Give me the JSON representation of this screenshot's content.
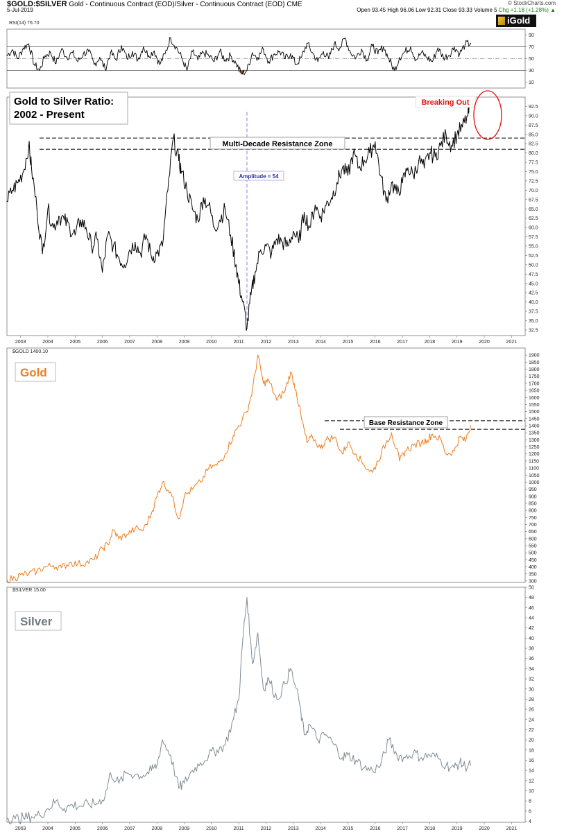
{
  "header": {
    "symbol": "$GOLD:$SILVER",
    "description": "Gold - Continuous Contract (EOD)/Silver - Continuous Contract (EOD) CME",
    "date": "5-Jul-2019",
    "credit": "© StockCharts.com",
    "ohlc": "Open 93.45 High 96.06 Low 92.31 Close 93.33 Volume 5",
    "change": "Chg +1.18 (+1.28%) ▲"
  },
  "logo": {
    "text": "iGold"
  },
  "chart_data": [
    {
      "type": "line",
      "panel": "rsi",
      "label": "RSI(14) 76.70",
      "ylim": [
        0,
        100
      ],
      "yticks": [
        10,
        30,
        50,
        70,
        90
      ],
      "levels": [
        30,
        50,
        70
      ],
      "color": "#000000",
      "fill_below_30": "#a0604a",
      "x": [
        2002.5,
        2002.7,
        2002.9,
        2003.1,
        2003.3,
        2003.5,
        2003.7,
        2003.9,
        2004.1,
        2004.3,
        2004.5,
        2004.7,
        2004.9,
        2005.1,
        2005.3,
        2005.5,
        2005.7,
        2005.9,
        2006.1,
        2006.3,
        2006.5,
        2006.7,
        2006.9,
        2007.1,
        2007.3,
        2007.5,
        2007.7,
        2007.9,
        2008.1,
        2008.3,
        2008.5,
        2008.7,
        2008.9,
        2009.1,
        2009.3,
        2009.5,
        2009.7,
        2009.9,
        2010.1,
        2010.3,
        2010.5,
        2010.7,
        2010.9,
        2011.1,
        2011.3,
        2011.5,
        2011.7,
        2011.9,
        2012.1,
        2012.3,
        2012.5,
        2012.7,
        2012.9,
        2013.1,
        2013.3,
        2013.5,
        2013.7,
        2013.9,
        2014.1,
        2014.3,
        2014.5,
        2014.7,
        2014.9,
        2015.1,
        2015.3,
        2015.5,
        2015.7,
        2015.9,
        2016.1,
        2016.3,
        2016.5,
        2016.7,
        2016.9,
        2017.1,
        2017.3,
        2017.5,
        2017.7,
        2017.9,
        2018.1,
        2018.3,
        2018.5,
        2018.7,
        2018.9,
        2019.1,
        2019.3,
        2019.5
      ],
      "y": [
        55,
        65,
        50,
        68,
        75,
        40,
        30,
        55,
        60,
        42,
        66,
        52,
        60,
        45,
        58,
        62,
        40,
        52,
        32,
        60,
        48,
        72,
        50,
        62,
        48,
        70,
        55,
        63,
        40,
        58,
        85,
        70,
        52,
        30,
        62,
        48,
        60,
        55,
        45,
        62,
        48,
        55,
        42,
        24,
        30,
        60,
        52,
        66,
        45,
        58,
        62,
        50,
        58,
        40,
        52,
        76,
        60,
        45,
        62,
        50,
        75,
        68,
        85,
        60,
        52,
        66,
        48,
        72,
        58,
        70,
        50,
        30,
        52,
        62,
        70,
        48,
        60,
        52,
        45,
        68,
        52,
        55,
        70,
        58,
        74,
        76
      ]
    },
    {
      "type": "line",
      "panel": "ratio",
      "title": "Gold to Silver Ratio:\n2002 - Present",
      "ylim": [
        31,
        95
      ],
      "yticks": [
        32.5,
        35.0,
        37.5,
        40.0,
        42.5,
        45.0,
        47.5,
        50.0,
        52.5,
        55.0,
        57.5,
        60.0,
        62.5,
        65.0,
        67.5,
        70.0,
        72.5,
        75.0,
        77.5,
        80.0,
        82.5,
        85.0,
        87.5,
        90.0,
        92.5
      ],
      "xticks": [
        2003,
        2004,
        2005,
        2006,
        2007,
        2008,
        2009,
        2010,
        2011,
        2012,
        2013,
        2014,
        2015,
        2016,
        2017,
        2018,
        2019,
        2020,
        2021
      ],
      "color": "#000000",
      "annotations": {
        "resistance": "Multi-Decade Resistance Zone",
        "resistance_levels": [
          81,
          84
        ],
        "amplitude": "Amplitude = 54",
        "amplitude_x": 2011.3,
        "breakout": "Breaking Out"
      },
      "x": [
        2002.5,
        2002.7,
        2002.9,
        2003.1,
        2003.3,
        2003.4,
        2003.6,
        2003.8,
        2004.0,
        2004.2,
        2004.4,
        2004.6,
        2004.8,
        2005.0,
        2005.2,
        2005.4,
        2005.6,
        2005.8,
        2006.0,
        2006.2,
        2006.4,
        2006.6,
        2006.8,
        2007.0,
        2007.2,
        2007.4,
        2007.6,
        2007.8,
        2008.0,
        2008.2,
        2008.4,
        2008.6,
        2008.8,
        2008.9,
        2009.1,
        2009.3,
        2009.5,
        2009.7,
        2009.9,
        2010.1,
        2010.3,
        2010.5,
        2010.7,
        2010.9,
        2011.0,
        2011.15,
        2011.3,
        2011.45,
        2011.6,
        2011.8,
        2012.0,
        2012.2,
        2012.4,
        2012.6,
        2012.8,
        2013.0,
        2013.2,
        2013.4,
        2013.6,
        2013.8,
        2014.0,
        2014.2,
        2014.4,
        2014.6,
        2014.8,
        2015.0,
        2015.2,
        2015.4,
        2015.6,
        2015.8,
        2016.0,
        2016.2,
        2016.4,
        2016.6,
        2016.8,
        2017.0,
        2017.2,
        2017.4,
        2017.6,
        2017.8,
        2018.0,
        2018.2,
        2018.4,
        2018.6,
        2018.8,
        2019.0,
        2019.2,
        2019.4,
        2019.5
      ],
      "y": [
        67,
        70,
        72,
        75,
        82,
        76,
        65,
        53,
        65,
        60,
        63,
        62,
        60,
        58,
        62,
        60,
        55,
        57,
        48,
        58,
        55,
        52,
        50,
        54,
        56,
        53,
        58,
        52,
        53,
        55,
        70,
        84,
        78,
        75,
        70,
        65,
        62,
        68,
        66,
        60,
        62,
        65,
        58,
        50,
        45,
        40,
        33,
        42,
        48,
        54,
        55,
        53,
        57,
        56,
        55,
        59,
        56,
        64,
        60,
        66,
        63,
        66,
        68,
        72,
        76,
        74,
        80,
        76,
        78,
        80,
        83,
        74,
        67,
        72,
        69,
        72,
        76,
        74,
        78,
        76,
        80,
        79,
        82,
        85,
        82,
        85,
        87,
        90,
        93
      ]
    },
    {
      "type": "line",
      "panel": "gold",
      "title": "Gold",
      "label": "$GOLD 1400.10",
      "ylim": [
        290,
        1950
      ],
      "yticks": [
        300,
        350,
        400,
        450,
        500,
        550,
        600,
        650,
        700,
        750,
        800,
        850,
        900,
        950,
        1000,
        1050,
        1100,
        1150,
        1200,
        1250,
        1300,
        1350,
        1400,
        1450,
        1500,
        1550,
        1600,
        1650,
        1700,
        1750,
        1800,
        1850,
        1900
      ],
      "color": "#ee7d1e",
      "annotations": {
        "resistance": "Base Resistance Zone",
        "resistance_levels": [
          1375,
          1435
        ]
      },
      "x": [
        2002.5,
        2002.8,
        2003.0,
        2003.3,
        2003.6,
        2003.9,
        2004.2,
        2004.5,
        2004.8,
        2005.1,
        2005.4,
        2005.7,
        2006.0,
        2006.2,
        2006.4,
        2006.6,
        2006.9,
        2007.2,
        2007.5,
        2007.8,
        2008.0,
        2008.2,
        2008.5,
        2008.8,
        2009.0,
        2009.3,
        2009.6,
        2009.9,
        2010.2,
        2010.5,
        2010.8,
        2011.0,
        2011.3,
        2011.5,
        2011.7,
        2011.9,
        2012.1,
        2012.4,
        2012.7,
        2012.9,
        2013.1,
        2013.3,
        2013.5,
        2013.7,
        2014.0,
        2014.2,
        2014.5,
        2014.8,
        2015.0,
        2015.3,
        2015.6,
        2015.9,
        2016.1,
        2016.4,
        2016.6,
        2016.9,
        2017.1,
        2017.4,
        2017.7,
        2017.9,
        2018.1,
        2018.4,
        2018.6,
        2018.9,
        2019.1,
        2019.3,
        2019.5
      ],
      "y": [
        310,
        320,
        345,
        350,
        370,
        400,
        410,
        395,
        430,
        420,
        430,
        450,
        530,
        560,
        660,
        600,
        630,
        670,
        660,
        780,
        900,
        1000,
        930,
        740,
        900,
        950,
        1000,
        1100,
        1120,
        1200,
        1330,
        1400,
        1500,
        1650,
        1900,
        1700,
        1720,
        1580,
        1650,
        1780,
        1650,
        1450,
        1280,
        1320,
        1240,
        1300,
        1320,
        1200,
        1280,
        1200,
        1120,
        1070,
        1150,
        1280,
        1350,
        1150,
        1220,
        1260,
        1280,
        1300,
        1340,
        1300,
        1200,
        1220,
        1320,
        1290,
        1400
      ]
    },
    {
      "type": "line",
      "panel": "silver",
      "title": "Silver",
      "label": "$SILVER 15.00",
      "ylim": [
        3.8,
        50
      ],
      "yticks": [
        4,
        6,
        8,
        10,
        12,
        14,
        16,
        18,
        20,
        22,
        24,
        26,
        28,
        30,
        32,
        34,
        36,
        38,
        40,
        42,
        44,
        46,
        48,
        50
      ],
      "xticks": [
        2003,
        2004,
        2005,
        2006,
        2007,
        2008,
        2009,
        2010,
        2011,
        2012,
        2013,
        2014,
        2015,
        2016,
        2017,
        2018,
        2019,
        2020,
        2021
      ],
      "color": "#7f8b93",
      "x": [
        2002.5,
        2002.8,
        2003.1,
        2003.4,
        2003.7,
        2004.0,
        2004.3,
        2004.6,
        2004.9,
        2005.2,
        2005.5,
        2005.8,
        2006.1,
        2006.3,
        2006.6,
        2006.9,
        2007.2,
        2007.5,
        2007.8,
        2008.0,
        2008.2,
        2008.5,
        2008.8,
        2009.0,
        2009.3,
        2009.6,
        2009.9,
        2010.2,
        2010.5,
        2010.8,
        2011.0,
        2011.15,
        2011.3,
        2011.5,
        2011.7,
        2011.9,
        2012.1,
        2012.4,
        2012.7,
        2012.9,
        2013.2,
        2013.4,
        2013.6,
        2013.9,
        2014.2,
        2014.5,
        2014.8,
        2015.0,
        2015.3,
        2015.6,
        2015.9,
        2016.2,
        2016.5,
        2016.8,
        2017.1,
        2017.4,
        2017.7,
        2018.0,
        2018.3,
        2018.6,
        2018.9,
        2019.1,
        2019.3,
        2019.5
      ],
      "y": [
        4.6,
        4.5,
        4.7,
        4.9,
        5.2,
        6.5,
        8.0,
        6.5,
        7.2,
        7.0,
        7.3,
        7.5,
        9.0,
        13.5,
        11.5,
        13.5,
        13.2,
        13.0,
        14.0,
        15.0,
        20.0,
        17.0,
        10.5,
        11.5,
        14.0,
        15.5,
        17.0,
        18.0,
        19.0,
        24.0,
        28.0,
        40.0,
        48.0,
        35.0,
        41.0,
        30.0,
        32.0,
        28.0,
        31.0,
        34.0,
        28.0,
        21.0,
        23.0,
        20.0,
        21.0,
        19.0,
        16.5,
        17.0,
        16.0,
        14.5,
        14.0,
        15.0,
        20.0,
        17.0,
        16.5,
        17.5,
        16.5,
        17.0,
        16.5,
        15.0,
        14.5,
        15.5,
        14.8,
        15.0
      ]
    }
  ]
}
